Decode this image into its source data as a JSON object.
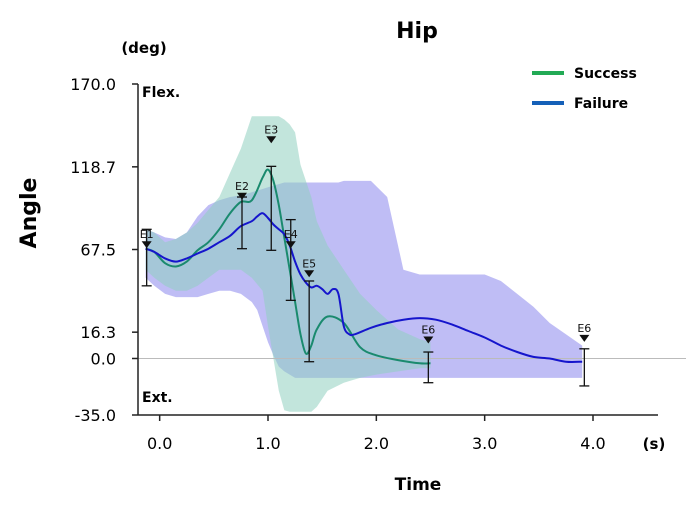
{
  "chart_data": {
    "type": "line",
    "title": "Hip",
    "xlabel": "Time",
    "ylabel": "Angle",
    "x_unit": "(s)",
    "y_unit": "(deg)",
    "xlim": [
      -0.2,
      4.6
    ],
    "ylim": [
      -35.0,
      170.0
    ],
    "x_ticks": [
      {
        "value": 0.0,
        "label": "0.0"
      },
      {
        "value": 1.0,
        "label": "1.0"
      },
      {
        "value": 2.0,
        "label": "2.0"
      },
      {
        "value": 3.0,
        "label": "3.0"
      },
      {
        "value": 4.0,
        "label": "4.0"
      }
    ],
    "y_ticks": [
      {
        "value": 170.0,
        "label": "170.0"
      },
      {
        "value": 118.7,
        "label": "118.7"
      },
      {
        "value": 67.5,
        "label": "67.5"
      },
      {
        "value": 16.3,
        "label": "16.3"
      },
      {
        "value": 0.0,
        "label": "0.0"
      },
      {
        "value": -35.0,
        "label": "-35.0"
      }
    ],
    "region_labels": {
      "flex": "Flex.",
      "ext": "Ext."
    },
    "reference_line": {
      "y": 0.0
    },
    "legend": {
      "position": "top-right"
    },
    "series": [
      {
        "name": "Success",
        "color": "#1a8a6e",
        "legend_color": "#22aa55",
        "band_color": "#8fd0c0",
        "x": [
          -0.13,
          -0.05,
          0.05,
          0.15,
          0.25,
          0.35,
          0.45,
          0.55,
          0.65,
          0.75,
          0.85,
          0.95,
          1.0,
          1.05,
          1.1,
          1.15,
          1.2,
          1.25,
          1.3,
          1.35,
          1.4,
          1.45,
          1.55,
          1.7,
          1.85,
          2.0,
          2.2,
          2.4,
          2.5
        ],
        "y": [
          68,
          66,
          59,
          57,
          60,
          67,
          72,
          80,
          90,
          97,
          98,
          112,
          117,
          110,
          95,
          75,
          55,
          35,
          15,
          3,
          8,
          18,
          26,
          22,
          7,
          2,
          -1,
          -3,
          -3
        ],
        "band_upper": [
          80,
          78,
          72,
          74,
          78,
          84,
          92,
          100,
          115,
          130,
          150,
          150,
          150,
          150,
          150,
          148,
          145,
          140,
          120,
          110,
          100,
          85,
          70,
          55,
          40,
          30,
          18,
          12,
          10
        ],
        "band_lower": [
          55,
          50,
          45,
          42,
          42,
          45,
          50,
          55,
          55,
          55,
          50,
          42,
          20,
          0,
          -20,
          -32,
          -33,
          -33,
          -33,
          -33,
          -33,
          -30,
          -20,
          -15,
          -12,
          -10,
          -8,
          -6,
          -6
        ]
      },
      {
        "name": "Failure",
        "color": "#1515cc",
        "legend_color": "#1560b8",
        "band_color": "#9d99f0",
        "x": [
          -0.13,
          -0.05,
          0.05,
          0.15,
          0.25,
          0.35,
          0.45,
          0.55,
          0.65,
          0.75,
          0.85,
          0.9,
          0.95,
          1.0,
          1.05,
          1.1,
          1.15,
          1.2,
          1.25,
          1.3,
          1.35,
          1.4,
          1.45,
          1.5,
          1.55,
          1.6,
          1.65,
          1.7,
          1.75,
          1.8,
          1.95,
          2.1,
          2.25,
          2.4,
          2.55,
          2.7,
          2.85,
          3.0,
          3.15,
          3.3,
          3.45,
          3.6,
          3.75,
          3.9
        ],
        "y": [
          68,
          66,
          62,
          60,
          62,
          65,
          68,
          72,
          76,
          82,
          85,
          88,
          90,
          87,
          83,
          80,
          77,
          70,
          60,
          52,
          47,
          44,
          45,
          43,
          40,
          43,
          40,
          20,
          15,
          15,
          19,
          22,
          24,
          25,
          24,
          21,
          17,
          13,
          8,
          4,
          1,
          0,
          -2,
          -2
        ],
        "band_upper": [
          80,
          78,
          75,
          74,
          78,
          88,
          95,
          98,
          100,
          101,
          103,
          104,
          105,
          106,
          107,
          108,
          109,
          109,
          109,
          109,
          109,
          109,
          109,
          109,
          109,
          109,
          109,
          110,
          110,
          110,
          110,
          100,
          55,
          52,
          52,
          52,
          52,
          52,
          48,
          40,
          32,
          22,
          15,
          8
        ],
        "band_lower": [
          50,
          45,
          40,
          38,
          38,
          38,
          40,
          42,
          42,
          40,
          35,
          30,
          20,
          10,
          2,
          -5,
          -8,
          -10,
          -12,
          -12,
          -12,
          -12,
          -12,
          -12,
          -12,
          -12,
          -12,
          -12,
          -12,
          -12,
          -12,
          -12,
          -12,
          -12,
          -12,
          -12,
          -12,
          -12,
          -12,
          -12,
          -12,
          -12,
          -12,
          -12
        ]
      }
    ],
    "events": [
      {
        "label": "E1",
        "x": -0.12,
        "y": 72,
        "low": 45,
        "high": 80
      },
      {
        "label": "E2",
        "x": 0.76,
        "y": 102,
        "low": 68,
        "high": 100
      },
      {
        "label": "E3",
        "x": 1.03,
        "y": 137,
        "low": 67,
        "high": 119
      },
      {
        "label": "E4",
        "x": 1.21,
        "y": 72,
        "low": 36,
        "high": 86
      },
      {
        "label": "E5",
        "x": 1.38,
        "y": 54,
        "low": -2,
        "high": 48
      },
      {
        "label": "E6",
        "x": 2.48,
        "y": 13,
        "low": -15,
        "high": 4
      },
      {
        "label": "E6",
        "x": 3.92,
        "y": 14,
        "low": -17,
        "high": 6
      }
    ]
  }
}
